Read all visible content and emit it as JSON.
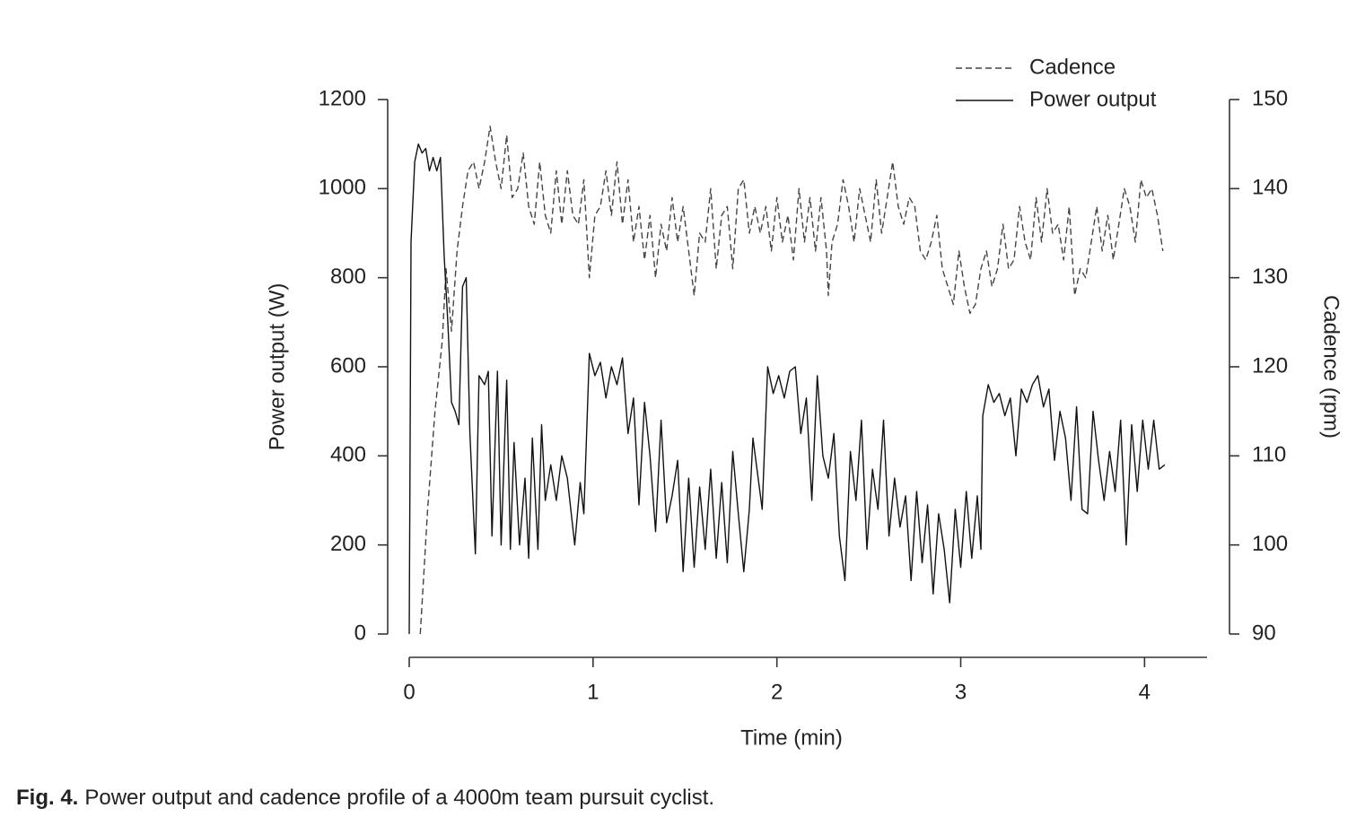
{
  "chart_data": {
    "type": "line",
    "xlabel": "Time (min)",
    "ylabel": "Power output (W)",
    "y2label": "Cadence (rpm)",
    "xlim": [
      0,
      4.34
    ],
    "xticks": [
      0,
      1,
      2,
      3,
      4
    ],
    "ylim": [
      0,
      1200
    ],
    "yticks": [
      0,
      200,
      400,
      600,
      800,
      1000,
      1200
    ],
    "y2lim": [
      90,
      150
    ],
    "y2ticks": [
      90,
      100,
      110,
      120,
      130,
      140,
      150
    ],
    "legend": "top-right",
    "series": [
      {
        "name": "Cadence",
        "color": "#444444",
        "style": "dashed",
        "axis": "y2",
        "x": [
          0.06,
          0.1,
          0.14,
          0.18,
          0.2,
          0.23,
          0.26,
          0.29,
          0.32,
          0.35,
          0.38,
          0.41,
          0.44,
          0.47,
          0.5,
          0.53,
          0.56,
          0.59,
          0.62,
          0.65,
          0.68,
          0.71,
          0.74,
          0.77,
          0.8,
          0.83,
          0.86,
          0.89,
          0.92,
          0.95,
          0.98,
          1.01,
          1.04,
          1.07,
          1.1,
          1.13,
          1.16,
          1.19,
          1.22,
          1.25,
          1.28,
          1.31,
          1.34,
          1.37,
          1.4,
          1.43,
          1.46,
          1.49,
          1.52,
          1.55,
          1.58,
          1.61,
          1.64,
          1.67,
          1.7,
          1.73,
          1.76,
          1.79,
          1.82,
          1.85,
          1.88,
          1.91,
          1.94,
          1.97,
          2.0,
          2.03,
          2.06,
          2.09,
          2.12,
          2.15,
          2.18,
          2.21,
          2.24,
          2.27,
          2.28,
          2.3,
          2.33,
          2.36,
          2.39,
          2.42,
          2.45,
          2.48,
          2.51,
          2.54,
          2.57,
          2.6,
          2.63,
          2.66,
          2.69,
          2.72,
          2.75,
          2.78,
          2.81,
          2.84,
          2.87,
          2.9,
          2.93,
          2.96,
          2.99,
          3.02,
          3.05,
          3.08,
          3.11,
          3.14,
          3.17,
          3.2,
          3.23,
          3.26,
          3.29,
          3.32,
          3.35,
          3.38,
          3.41,
          3.44,
          3.47,
          3.5,
          3.53,
          3.56,
          3.59,
          3.62,
          3.65,
          3.68,
          3.71,
          3.74,
          3.77,
          3.8,
          3.83,
          3.86,
          3.89,
          3.92,
          3.95,
          3.98,
          4.01,
          4.04,
          4.07,
          4.1
        ],
        "values": [
          90,
          104,
          115,
          123,
          131,
          124,
          133,
          138,
          142,
          143,
          140,
          143,
          147,
          143,
          140,
          146,
          139,
          140,
          144,
          138,
          136,
          143,
          137,
          135,
          142,
          136,
          142,
          137,
          136,
          141,
          130,
          137,
          138,
          142,
          137,
          143,
          136,
          141,
          134,
          138,
          132,
          137,
          130,
          136,
          133,
          139,
          134,
          138,
          133,
          128,
          135,
          134,
          140,
          131,
          137,
          138,
          131,
          140,
          141,
          135,
          138,
          135,
          138,
          133,
          139,
          134,
          137,
          132,
          140,
          134,
          139,
          133,
          139,
          133,
          128,
          134,
          136,
          141,
          138,
          134,
          140,
          137,
          134,
          141,
          135,
          139,
          143,
          138,
          136,
          139,
          138,
          133,
          132,
          134,
          137,
          131,
          129,
          127,
          133,
          129,
          126,
          127,
          131,
          133,
          129,
          131,
          136,
          131,
          132,
          138,
          134,
          132,
          139,
          134,
          140,
          135,
          136,
          132,
          138,
          128,
          131,
          130,
          134,
          138,
          133,
          137,
          132,
          136,
          140,
          138,
          134,
          141,
          139,
          140,
          137,
          133
        ]
      },
      {
        "name": "Power output",
        "color": "#111111",
        "style": "solid",
        "axis": "y",
        "x": [
          0,
          0.01,
          0.03,
          0.05,
          0.07,
          0.09,
          0.11,
          0.13,
          0.15,
          0.17,
          0.19,
          0.21,
          0.23,
          0.25,
          0.27,
          0.29,
          0.31,
          0.33,
          0.36,
          0.38,
          0.41,
          0.43,
          0.45,
          0.48,
          0.5,
          0.53,
          0.55,
          0.57,
          0.6,
          0.63,
          0.65,
          0.67,
          0.7,
          0.72,
          0.74,
          0.77,
          0.8,
          0.83,
          0.86,
          0.9,
          0.93,
          0.95,
          0.98,
          1.01,
          1.04,
          1.07,
          1.1,
          1.13,
          1.16,
          1.19,
          1.22,
          1.25,
          1.28,
          1.31,
          1.34,
          1.37,
          1.4,
          1.43,
          1.46,
          1.49,
          1.52,
          1.55,
          1.58,
          1.61,
          1.64,
          1.67,
          1.7,
          1.73,
          1.76,
          1.79,
          1.82,
          1.85,
          1.87,
          1.92,
          1.95,
          1.98,
          2.01,
          2.04,
          2.07,
          2.1,
          2.13,
          2.16,
          2.19,
          2.22,
          2.25,
          2.28,
          2.31,
          2.34,
          2.37,
          2.4,
          2.43,
          2.46,
          2.49,
          2.52,
          2.55,
          2.58,
          2.61,
          2.64,
          2.67,
          2.7,
          2.73,
          2.76,
          2.79,
          2.82,
          2.85,
          2.88,
          2.91,
          2.94,
          2.97,
          3.0,
          3.03,
          3.06,
          3.09,
          3.11,
          3.12,
          3.15,
          3.18,
          3.21,
          3.24,
          3.27,
          3.3,
          3.33,
          3.36,
          3.39,
          3.42,
          3.45,
          3.48,
          3.51,
          3.54,
          3.57,
          3.6,
          3.63,
          3.66,
          3.69,
          3.72,
          3.75,
          3.78,
          3.81,
          3.84,
          3.87,
          3.9,
          3.93,
          3.96,
          3.99,
          4.02,
          4.05,
          4.08,
          4.11
        ],
        "values": [
          0,
          880,
          1060,
          1100,
          1080,
          1090,
          1040,
          1070,
          1040,
          1070,
          850,
          700,
          520,
          500,
          470,
          780,
          800,
          450,
          180,
          580,
          560,
          590,
          220,
          590,
          200,
          570,
          190,
          430,
          200,
          350,
          170,
          440,
          190,
          470,
          300,
          380,
          300,
          400,
          350,
          200,
          340,
          270,
          630,
          580,
          610,
          530,
          600,
          560,
          620,
          450,
          530,
          290,
          520,
          400,
          230,
          480,
          250,
          310,
          390,
          140,
          350,
          150,
          330,
          190,
          370,
          170,
          340,
          160,
          410,
          270,
          140,
          280,
          440,
          280,
          600,
          540,
          580,
          530,
          590,
          600,
          450,
          530,
          300,
          580,
          400,
          350,
          450,
          220,
          120,
          410,
          300,
          480,
          190,
          370,
          280,
          480,
          220,
          350,
          240,
          310,
          120,
          320,
          160,
          290,
          90,
          270,
          190,
          70,
          280,
          150,
          320,
          170,
          310,
          190,
          490,
          560,
          520,
          540,
          490,
          530,
          400,
          550,
          520,
          560,
          580,
          510,
          550,
          390,
          500,
          440,
          300,
          510,
          280,
          270,
          500,
          390,
          300,
          410,
          320,
          480,
          200,
          470,
          320,
          480,
          370,
          480,
          370,
          380
        ]
      }
    ]
  },
  "caption": {
    "label": "Fig. 4.",
    "text": "Power output and cadence profile of a 4000m team pursuit cyclist."
  }
}
